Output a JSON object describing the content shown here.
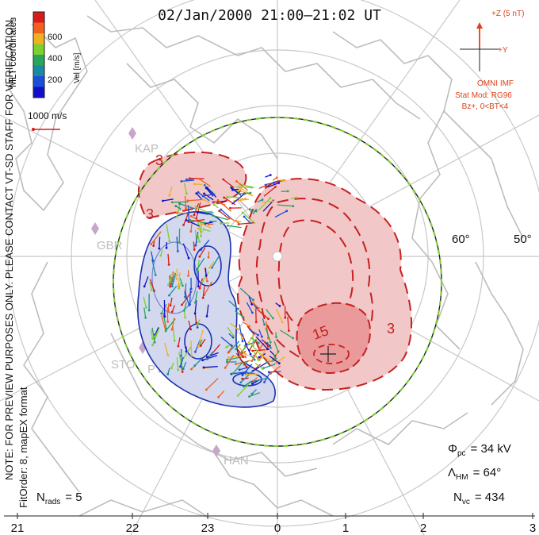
{
  "title": "02/Jan/2000 21:00–21:02 UT",
  "coords_label": "MLT coordinates",
  "colorbar": {
    "label": "Vel [m/s]",
    "ticks": [
      "600",
      "400",
      "200"
    ],
    "colors": [
      "#d81b1b",
      "#f06020",
      "#f0b020",
      "#7cd030",
      "#2aa55a",
      "#1a8aa0",
      "#1c4fd8",
      "#1010c8"
    ]
  },
  "scale_vector": {
    "label": "1000 m/s"
  },
  "imf": {
    "z_label": "+Z (5 nT)",
    "y_label": "+Y",
    "source": "OMNI IMF",
    "model": "Stat Mod: RG96",
    "condition": "Bz+, 0<BT<4"
  },
  "notes": {
    "preview": "NOTE: FOR PREVIEW PURPOSES ONLY. PLEASE CONTACT VT-SD STAFF FOR VERIFICATION.",
    "fitorder": "FitOrder: 8, mapEX format"
  },
  "latitude_labels": [
    "60°",
    "50°"
  ],
  "contour_labels": [
    "3",
    "3",
    "15",
    "3"
  ],
  "stations": [
    "KAP",
    "GBR",
    "STO",
    "PYK",
    "HAN"
  ],
  "stats": {
    "phi_symbol": "Φ",
    "phi_sub": "pc",
    "phi_value": "= 34 kV",
    "lambda_symbol": "Λ",
    "lambda_sub": "HM",
    "lambda_value": "= 64°",
    "nvc_symbol": "N",
    "nvc_sub": "vc",
    "nvc_value": "= 434",
    "nrads_symbol": "N",
    "nrads_sub": "rads",
    "nrads_value": "= 5"
  },
  "mlt_ticks": [
    "21",
    "22",
    "23",
    "0",
    "1",
    "2",
    "3"
  ],
  "colors": {
    "positive_cell": "#f2c7c7",
    "positive_core": "#ea9a9a",
    "negative_cell": "#d3d8ee",
    "contour_positive": "#c62020",
    "contour_negative": "#1a2fb0",
    "coastline": "#bdbdbd",
    "grid": "#c8c8c8",
    "imf": "#e0401a"
  }
}
